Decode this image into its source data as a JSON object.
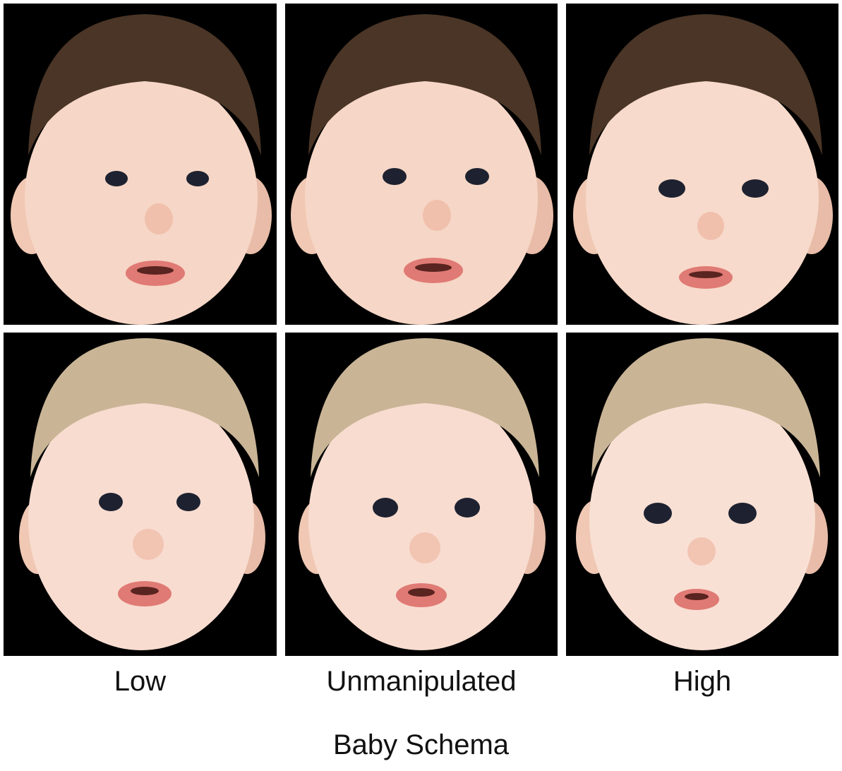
{
  "figure": {
    "columns": [
      {
        "label": "Low"
      },
      {
        "label": "Unmanipulated"
      },
      {
        "label": "High"
      }
    ],
    "axis_title": "Baby Schema",
    "rows": [
      {
        "subject": "dark-haired infant",
        "hair_color": "#4a3526"
      },
      {
        "subject": "blond infant",
        "hair_color": "#c9b596"
      }
    ],
    "colors": {
      "background": "#000000",
      "skin": "#f6d6c6",
      "lips": "#e07a74",
      "eyes": "#1e2230"
    }
  }
}
